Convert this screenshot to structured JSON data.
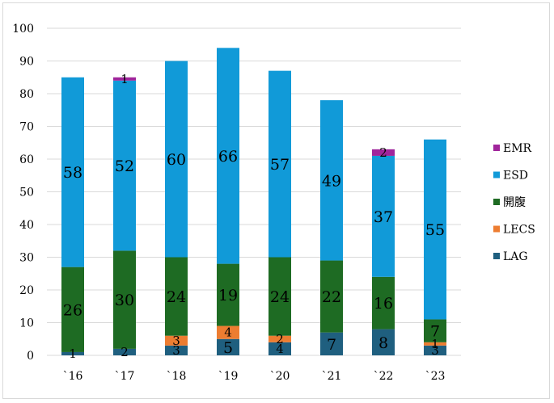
{
  "chart_data": {
    "type": "bar",
    "stacked": true,
    "categories": [
      "`16",
      "`17",
      "`18",
      "`19",
      "`20",
      "`21",
      "`22",
      "`23"
    ],
    "ylim": [
      0,
      100
    ],
    "yticks": [
      0,
      10,
      20,
      30,
      40,
      50,
      60,
      70,
      80,
      90,
      100
    ],
    "grid": true,
    "legend_position": "right",
    "series": [
      {
        "name": "LAG",
        "color": "#1f5f7f",
        "values": [
          1,
          2,
          3,
          5,
          4,
          7,
          8,
          3
        ]
      },
      {
        "name": "LECS",
        "color": "#ed7d31",
        "values": [
          0,
          0,
          3,
          4,
          2,
          0,
          0,
          1
        ]
      },
      {
        "name": "開腹",
        "color": "#1e6b23",
        "values": [
          26,
          30,
          24,
          19,
          24,
          22,
          16,
          7
        ]
      },
      {
        "name": "ESD",
        "color": "#119ad8",
        "values": [
          58,
          52,
          60,
          66,
          57,
          49,
          37,
          55
        ]
      },
      {
        "name": "EMR",
        "color": "#a0259b",
        "values": [
          0,
          1,
          0,
          0,
          0,
          0,
          2,
          0
        ]
      }
    ],
    "legend_order": [
      "EMR",
      "ESD",
      "開腹",
      "LECS",
      "LAG"
    ]
  }
}
